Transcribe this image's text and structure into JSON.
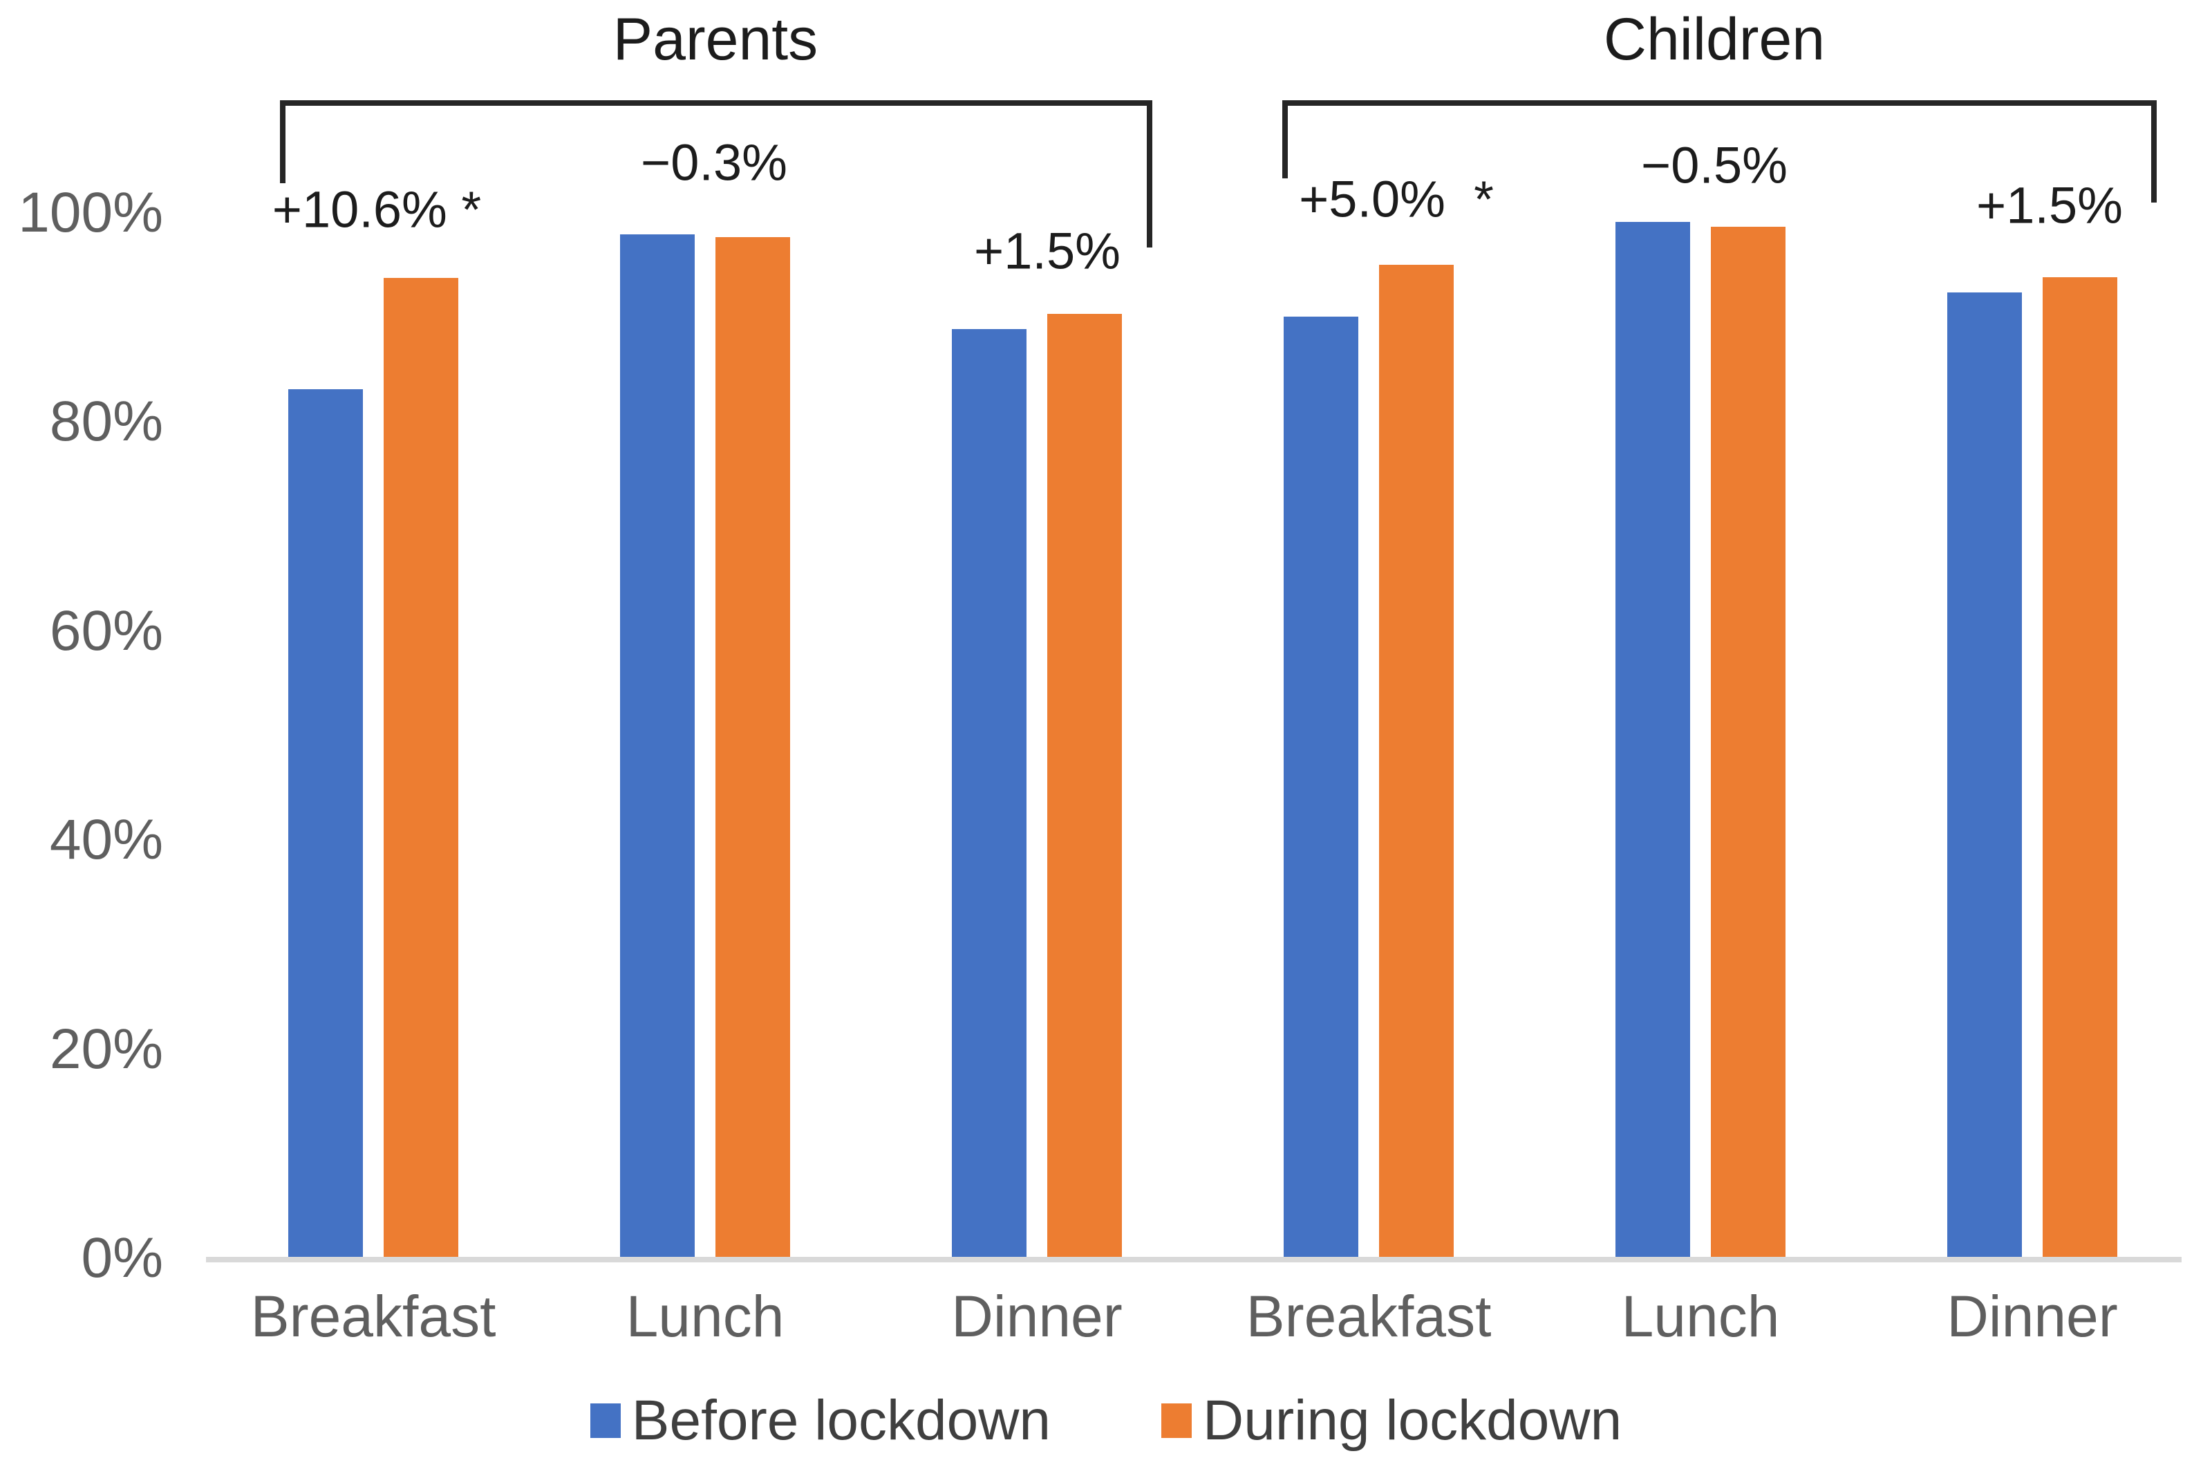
{
  "chart_data": {
    "type": "bar",
    "unit": "%",
    "ylim": [
      0,
      100
    ],
    "grid": false,
    "legend_position": "bottom",
    "yticks": [
      "0%",
      "20%",
      "40%",
      "60%",
      "80%",
      "100%"
    ],
    "series_names": [
      "Before lockdown",
      "During lockdown"
    ],
    "colors": {
      "before": "#4472C4",
      "during": "#ED7D31",
      "axis_line": "#D9D9D9",
      "bracket": "#262626",
      "tick_text": "#5f5f5f"
    },
    "groups": [
      {
        "title": "Parents",
        "categories": [
          "Breakfast",
          "Lunch",
          "Dinner"
        ],
        "series": [
          {
            "name": "Before lockdown",
            "values": [
              83.3,
              98.1,
              89.0
            ]
          },
          {
            "name": "During lockdown",
            "values": [
              93.9,
              97.8,
              90.5
            ]
          }
        ],
        "annotations": [
          "+10.6% *",
          "−0.3%",
          "+1.5%"
        ]
      },
      {
        "title": "Children",
        "categories": [
          "Breakfast",
          "Lunch",
          "Dinner"
        ],
        "series": [
          {
            "name": "Before lockdown",
            "values": [
              90.2,
              99.3,
              92.5
            ]
          },
          {
            "name": "During lockdown",
            "values": [
              95.2,
              98.8,
              94.0
            ]
          }
        ],
        "annotations": [
          "+5.0%  *",
          "−0.5%",
          "+1.5%"
        ]
      }
    ]
  },
  "legend": [
    {
      "label": "Before lockdown",
      "color": "#4472C4"
    },
    {
      "label": "During lockdown",
      "color": "#ED7D31"
    }
  ]
}
